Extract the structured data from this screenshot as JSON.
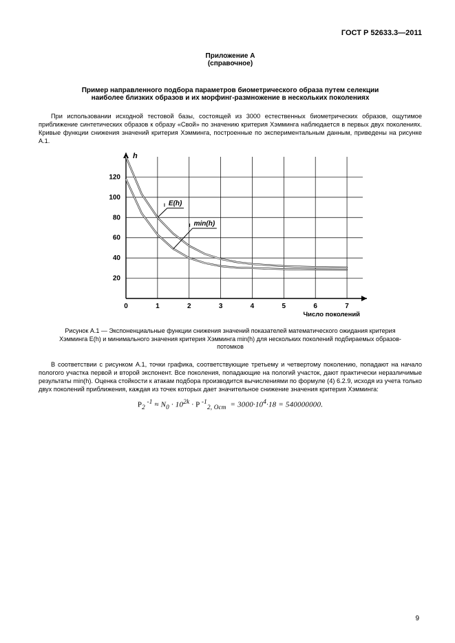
{
  "header": {
    "doc_code": "ГОСТ Р 52633.3—2011"
  },
  "appendix": {
    "label": "Приложение А",
    "note": "(справочное)"
  },
  "title": {
    "line1": "Пример направленного подбора параметров биометрического образа путем селекции",
    "line2": "наиболее близких образов и их морфинг-размножение в нескольких поколениях"
  },
  "para1": "При использовании исходной тестовой базы, состоящей из 3000 естественных биометрических образов, ощутимое приближение синтетических образов к образу «Свой» по значению критерия Хэмминга наблюдается в первых двух поколениях. Кривые функции снижения значений критерия Хэмминга, построенные по экспериментальным данным, приведены на рисунке А.1.",
  "chart": {
    "type": "line",
    "background_color": "#ffffff",
    "axis_color": "#000000",
    "grid_color": "#000000",
    "line_color": "#000000",
    "line_width_outer": 2.4,
    "line_width_inner": 1.2,
    "xlim": [
      0,
      7.5
    ],
    "ylim": [
      0,
      140
    ],
    "xticks": [
      0,
      1,
      2,
      3,
      4,
      5,
      6,
      7
    ],
    "yticks": [
      20,
      40,
      60,
      80,
      100,
      120
    ],
    "ylabel": "h",
    "xlabel": "Число поколений",
    "series": [
      {
        "name": "E(h)",
        "label": "E(h)",
        "label_pos": {
          "x": 1.35,
          "y": 92
        },
        "points": [
          [
            0,
            140
          ],
          [
            0.5,
            103
          ],
          [
            1,
            80
          ],
          [
            1.5,
            64
          ],
          [
            2,
            52
          ],
          [
            2.5,
            44
          ],
          [
            3,
            39
          ],
          [
            3.5,
            36
          ],
          [
            4,
            34
          ],
          [
            4.5,
            33
          ],
          [
            5,
            32
          ],
          [
            5.5,
            31.5
          ],
          [
            6,
            31
          ],
          [
            6.5,
            30.8
          ],
          [
            7,
            30.6
          ]
        ]
      },
      {
        "name": "min(h)",
        "label": "min(h)",
        "label_pos": {
          "x": 2.15,
          "y": 72
        },
        "points": [
          [
            0,
            118
          ],
          [
            0.5,
            84
          ],
          [
            1,
            63
          ],
          [
            1.5,
            49
          ],
          [
            2,
            40
          ],
          [
            2.5,
            35
          ],
          [
            3,
            32
          ],
          [
            3.5,
            30.5
          ],
          [
            4,
            30
          ],
          [
            4.5,
            29.5
          ],
          [
            5,
            29
          ],
          [
            5.5,
            28.8
          ],
          [
            6,
            28.6
          ],
          [
            6.5,
            28.5
          ],
          [
            7,
            28.4
          ]
        ]
      }
    ],
    "label_fontsize": 10,
    "tick_fontsize": 10,
    "title_fontsize": 10
  },
  "caption": "Рисунок А.1 — Экспоненциальные функции снижения значений показателей математического ожидания критерия Хэмминга E(h) и минимального значения критерия Хэмминга min(h) для нескольких поколений подбираемых образов-потомков",
  "para2": "В соответствии с рисунком А.1, точки графика, соответствующие третьему и четвертому поколению, попадают на начало пологого участка первой и второй экспонент. Все поколения, попадающие на пологий участок, дают практически неразличимые результаты min(h). Оценка стойкости к атакам подбора производится вычислениями по формуле (4) 6.2.9, исходя из учета только двух поколений приближения, каждая из точек которых дает значительное снижение значения критерия Хэмминга:",
  "formula_text": "P₂⁻¹ ≈ N₀ · 10²ᵏ · P⁻¹₂, Ост  = 3000·10⁴·18 = 540000000.",
  "page_number": "9"
}
